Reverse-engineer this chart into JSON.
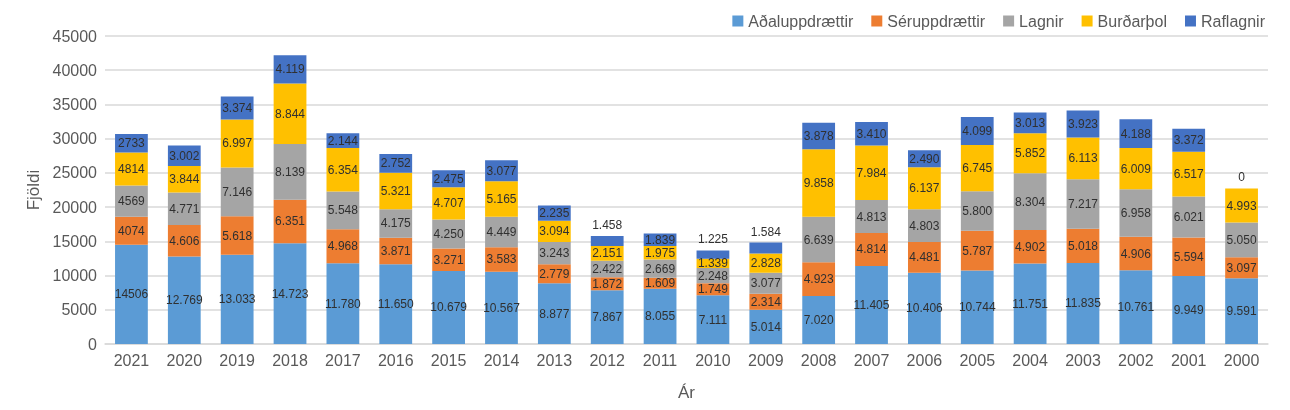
{
  "chart_data": {
    "type": "bar",
    "stacked": true,
    "xlabel": "Ár",
    "ylabel": "Fjöldi",
    "categories": [
      "2021",
      "2020",
      "2019",
      "2018",
      "2017",
      "2016",
      "2015",
      "2014",
      "2013",
      "2012",
      "2011",
      "2010",
      "2009",
      "2008",
      "2007",
      "2006",
      "2005",
      "2004",
      "2003",
      "2002",
      "2001",
      "2000"
    ],
    "series": [
      {
        "name": "Aðaluppdrættir",
        "color": "#5b9bd5",
        "values": [
          14506,
          12769,
          13033,
          14723,
          11780,
          11650,
          10679,
          10567,
          8877,
          7867,
          8055,
          7111,
          5014,
          7020,
          11405,
          10406,
          10744,
          11751,
          11835,
          10761,
          9949,
          9591
        ],
        "value_labels": [
          "14506",
          "12.769",
          "13.033",
          "14.723",
          "11.780",
          "11.650",
          "10.679",
          "10.567",
          "8.877",
          "7.867",
          "8.055",
          "7.111",
          "5.014",
          "7.020",
          "11.405",
          "10.406",
          "10.744",
          "11.751",
          "11.835",
          "10.761",
          "9.949",
          "9.591"
        ]
      },
      {
        "name": "Séruppdrættir",
        "color": "#ed7d31",
        "values": [
          4074,
          4606,
          5618,
          6351,
          4968,
          3871,
          3271,
          3583,
          2779,
          1872,
          1609,
          1749,
          2314,
          4923,
          4814,
          4481,
          5787,
          4902,
          5018,
          4906,
          5594,
          3097
        ],
        "value_labels": [
          "4074",
          "4.606",
          "5.618",
          "6.351",
          "4.968",
          "3.871",
          "3.271",
          "3.583",
          "2.779",
          "1.872",
          "1.609",
          "1.749",
          "2.314",
          "4.923",
          "4.814",
          "4.481",
          "5.787",
          "4.902",
          "5.018",
          "4.906",
          "5.594",
          "3.097"
        ]
      },
      {
        "name": "Lagnir",
        "color": "#a5a5a5",
        "values": [
          4569,
          4771,
          7146,
          8139,
          5548,
          4175,
          4250,
          4449,
          3243,
          2422,
          2669,
          2248,
          3077,
          6639,
          4813,
          4803,
          5800,
          8304,
          7217,
          6958,
          6021,
          5050
        ],
        "value_labels": [
          "4569",
          "4.771",
          "7.146",
          "8.139",
          "5.548",
          "4.175",
          "4.250",
          "4.449",
          "3.243",
          "2.422",
          "2.669",
          "2.248",
          "3.077",
          "6.639",
          "4.813",
          "4.803",
          "5.800",
          "8.304",
          "7.217",
          "6.958",
          "6.021",
          "5.050"
        ]
      },
      {
        "name": "Burðarþol",
        "color": "#ffc000",
        "values": [
          4814,
          3844,
          6997,
          8844,
          6354,
          5321,
          4707,
          5165,
          3094,
          2151,
          1975,
          1339,
          2828,
          9858,
          7984,
          6137,
          6745,
          5852,
          6113,
          6009,
          6517,
          4993
        ],
        "value_labels": [
          "4814",
          "3.844",
          "6.997",
          "8.844",
          "6.354",
          "5.321",
          "4.707",
          "5.165",
          "3.094",
          "2.151",
          "1.975",
          "1.339",
          "2.828",
          "9.858",
          "7.984",
          "6.137",
          "6.745",
          "5.852",
          "6.113",
          "6.009",
          "6.517",
          "4.993"
        ]
      },
      {
        "name": "Raflagnir",
        "color": "#4472c4",
        "values": [
          2733,
          3002,
          3374,
          4119,
          2144,
          2752,
          2475,
          3077,
          2235,
          1458,
          1839,
          1225,
          1584,
          3878,
          3410,
          2490,
          4099,
          3013,
          3923,
          4188,
          3372,
          0
        ],
        "value_labels": [
          "2733",
          "3.002",
          "3.374",
          "4.119",
          "2.144",
          "2.752",
          "2.475",
          "3.077",
          "2.235",
          "1.458",
          "1.839",
          "1.225",
          "1.584",
          "3.878",
          "3.410",
          "2.490",
          "4.099",
          "3.013",
          "3.923",
          "4.188",
          "3.372",
          "0"
        ]
      }
    ],
    "ylim": [
      0,
      45000
    ],
    "yticks": [
      0,
      5000,
      10000,
      15000,
      20000,
      25000,
      30000,
      35000,
      40000,
      45000
    ],
    "grid": "y",
    "legend": "top right"
  }
}
